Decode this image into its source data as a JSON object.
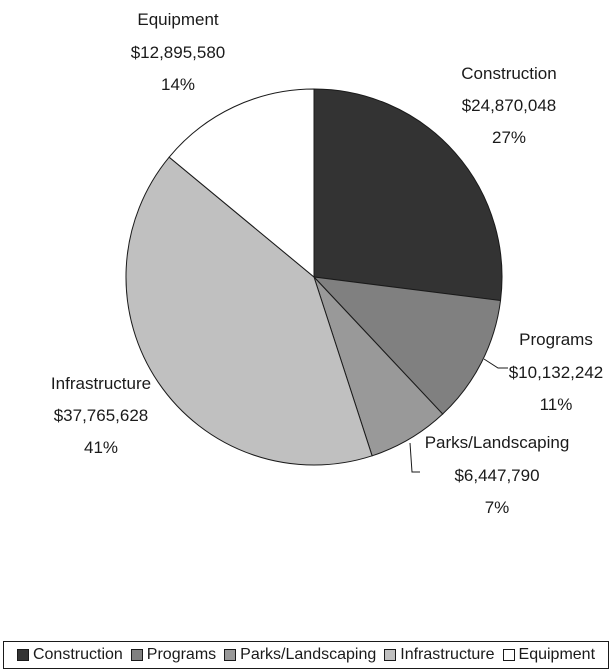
{
  "chart_data": {
    "type": "pie",
    "title": "",
    "slices": [
      {
        "name": "Construction",
        "value": 24870048,
        "value_label": "$24,870,048",
        "percent_label": "27%",
        "color": "#333333"
      },
      {
        "name": "Programs",
        "value": 10132242,
        "value_label": "$10,132,242",
        "percent_label": "11%",
        "color": "#808080"
      },
      {
        "name": "Parks/Landscaping",
        "value": 6447790,
        "value_label": "$6,447,790",
        "percent_label": "7%",
        "color": "#999999"
      },
      {
        "name": "Infrastructure",
        "value": 37765628,
        "value_label": "$37,765,628",
        "percent_label": "41%",
        "color": "#c0c0c0"
      },
      {
        "name": "Equipment",
        "value": 12895580,
        "value_label": "$12,895,580",
        "percent_label": "14%",
        "color": "#ffffff"
      }
    ],
    "start_angle": "12 o'clock",
    "direction": "clockwise",
    "legend_position": "bottom"
  }
}
